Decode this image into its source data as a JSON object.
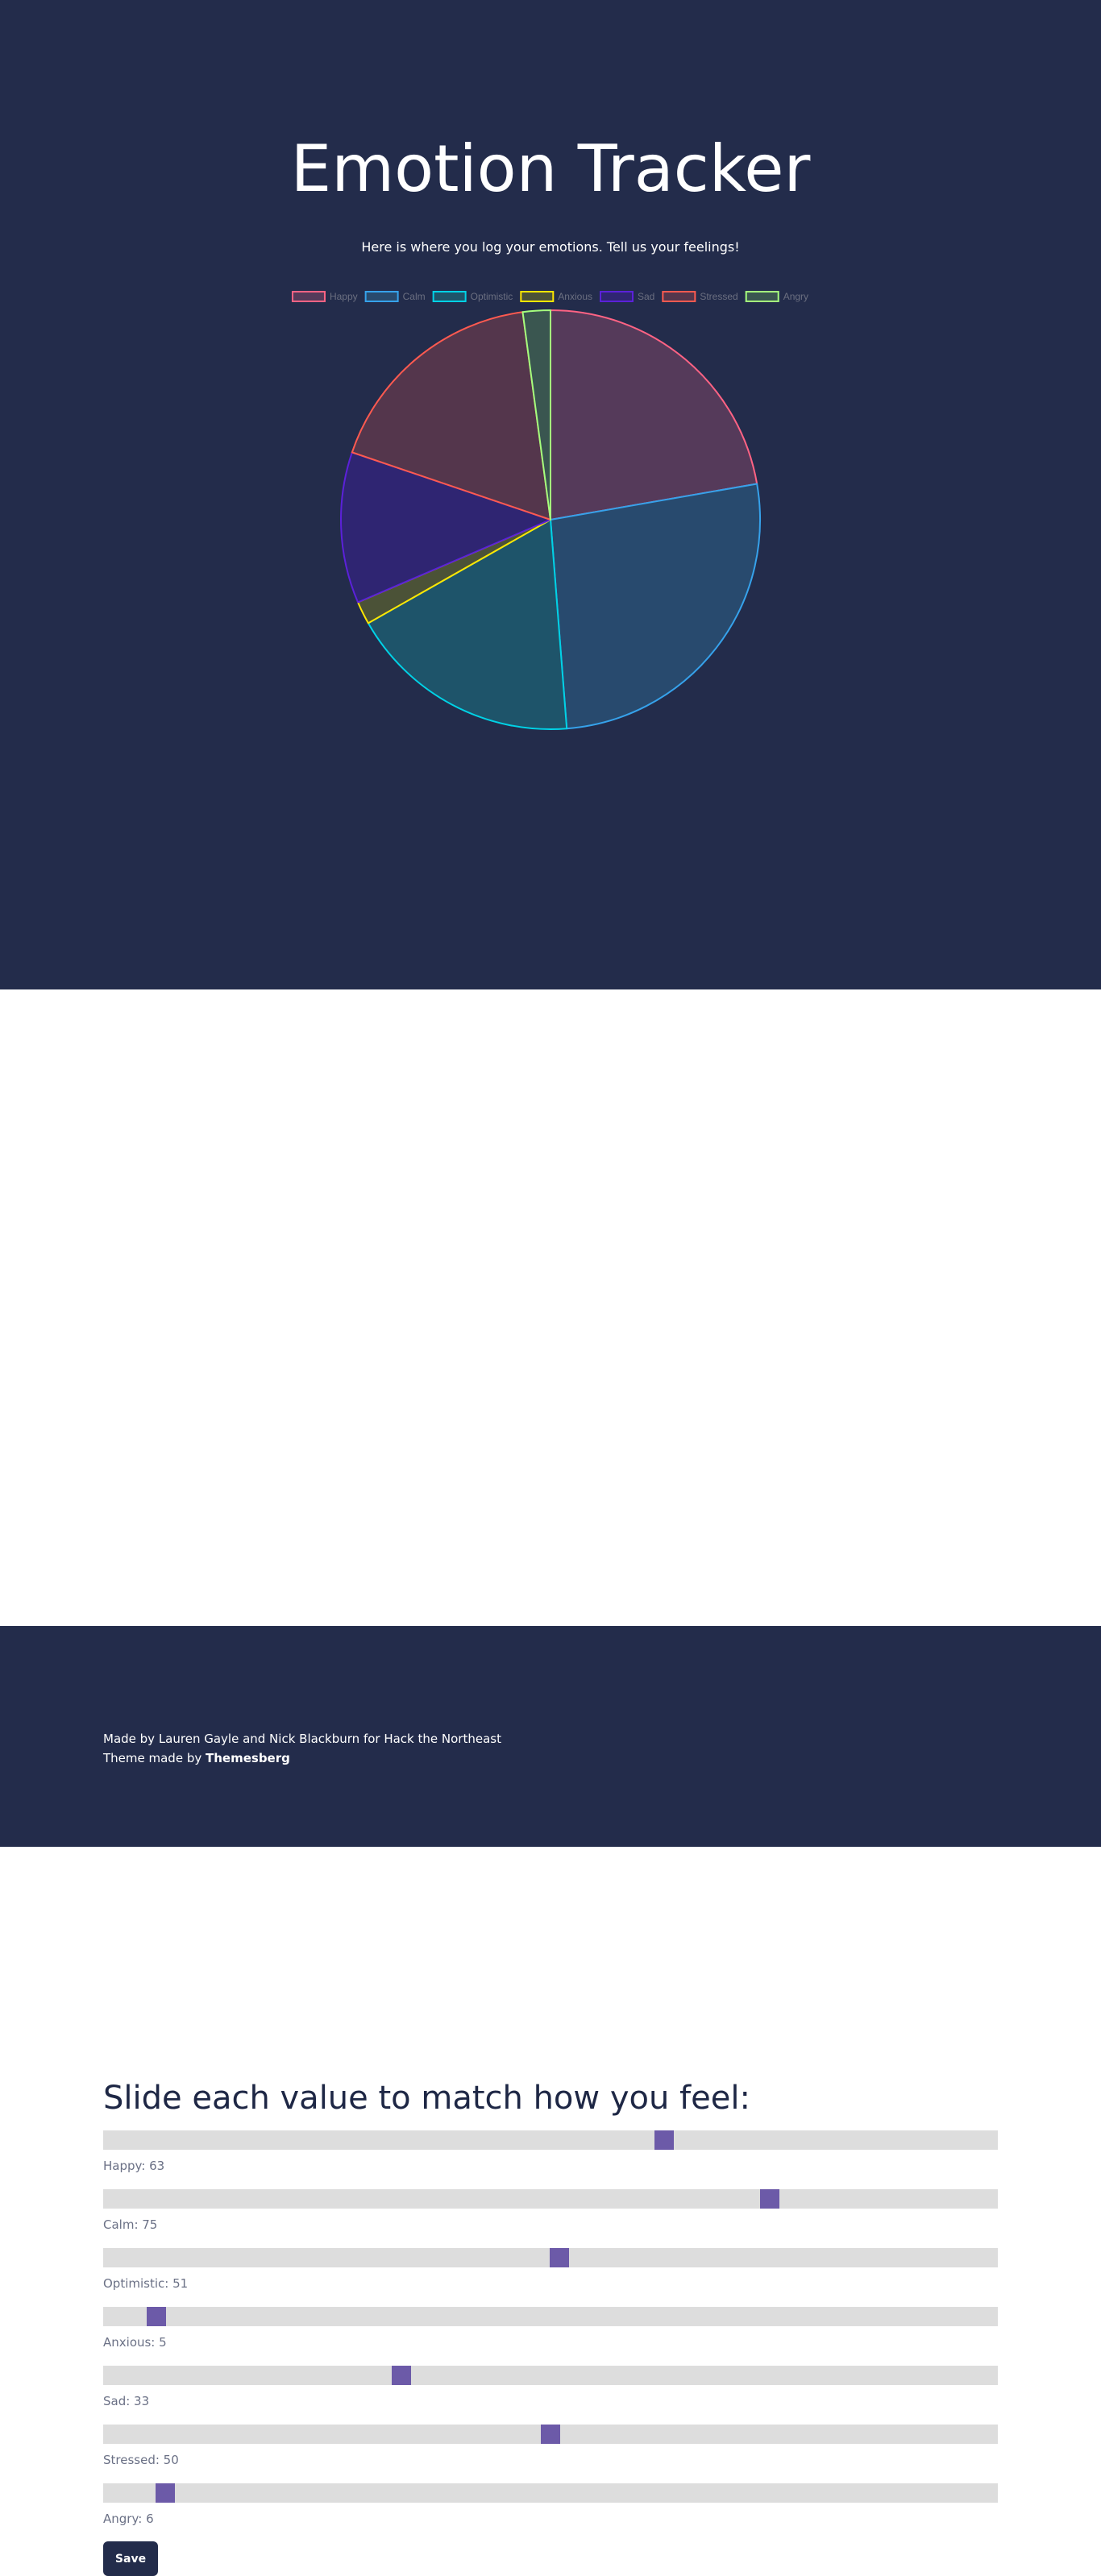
{
  "header": {
    "title": "Emotion Tracker",
    "subtitle": "Here is where you log your emotions. Tell us your feelings!"
  },
  "chart_data": {
    "type": "pie",
    "categories": [
      "Happy",
      "Calm",
      "Optimistic",
      "Anxious",
      "Sad",
      "Stressed",
      "Angry"
    ],
    "values": [
      63,
      75,
      51,
      5,
      33,
      50,
      6
    ],
    "legend_position": "top",
    "border_colors": [
      "#ff6384",
      "#36a2eb",
      "#00d2e6",
      "#ffe600",
      "#5b21d9",
      "#ff5a50",
      "#a5ff7d"
    ],
    "fill_colors": [
      "#553a5a",
      "#284a6e",
      "#1e546a",
      "#4b5237",
      "#2f2572",
      "#54364c",
      "#3a5650"
    ],
    "legend_text_color": "#6b6f80"
  },
  "form": {
    "heading": "Slide each value to match how you feel:",
    "sliders": [
      {
        "label": "Happy: 63",
        "value": 63
      },
      {
        "label": "Calm: 75",
        "value": 75
      },
      {
        "label": "Optimistic: 51",
        "value": 51
      },
      {
        "label": "Anxious: 5",
        "value": 5
      },
      {
        "label": "Sad: 33",
        "value": 33
      },
      {
        "label": "Stressed: 50",
        "value": 50
      },
      {
        "label": "Angry: 6",
        "value": 6
      }
    ],
    "save_label": "Save"
  },
  "footer": {
    "credit": "Made by Lauren Gayle and Nick Blackburn for Hack the Northeast",
    "theme_prefix": "Theme made by ",
    "theme_link": "Themesberg"
  },
  "colors": {
    "navy": "#232c4b",
    "slider_track": "#dddddd",
    "slider_thumb": "#6c5aa8"
  }
}
